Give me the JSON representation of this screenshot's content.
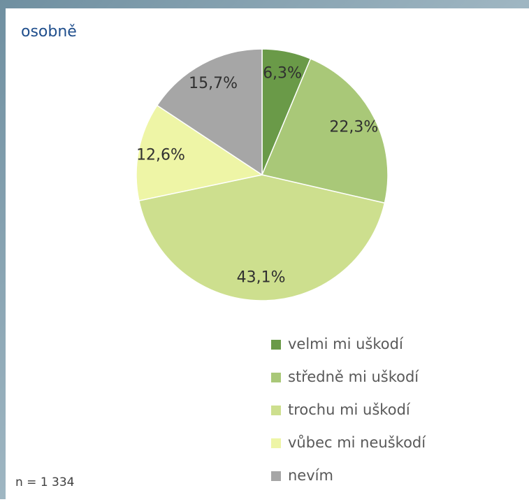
{
  "chart_data": {
    "type": "pie",
    "title": "osobně",
    "categories": [
      "velmi mi uškodí",
      "středně mi uškodí",
      "trochu mi uškodí",
      "vůbec mi neuškodí",
      "nevím"
    ],
    "values": [
      6.3,
      22.3,
      43.1,
      12.6,
      15.7
    ],
    "value_labels": [
      "6,3%",
      "22,3%",
      "43,1%",
      "12,6%",
      "15,7%"
    ],
    "colors": [
      "#6a9a48",
      "#a9c878",
      "#cddf8e",
      "#eef5a6",
      "#a6a6a6"
    ],
    "legend": "bottom-right",
    "note": "n = 1 334"
  }
}
